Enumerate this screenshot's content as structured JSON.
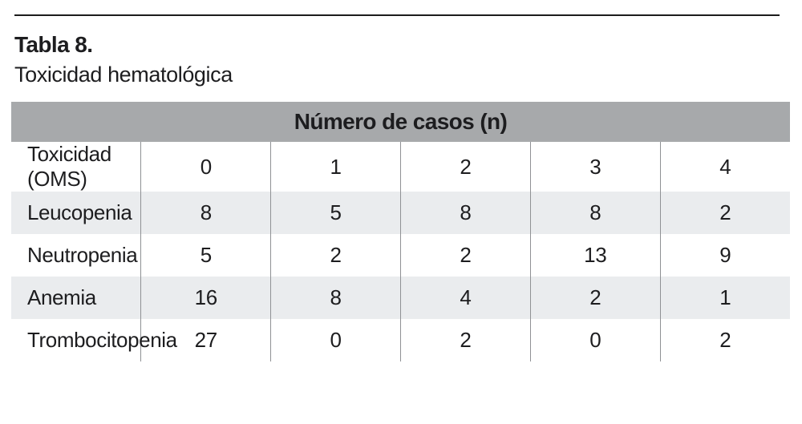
{
  "page": {
    "title": "Tabla 8.",
    "subtitle": "Toxicidad hematológica"
  },
  "table": {
    "header": "Número de casos (n)",
    "rows": [
      {
        "label": "Toxicidad (OMS)",
        "values": [
          "0",
          "1",
          "2",
          "3",
          "4"
        ]
      },
      {
        "label": "Leucopenia",
        "values": [
          "8",
          "5",
          "8",
          "8",
          "2"
        ]
      },
      {
        "label": "Neutropenia",
        "values": [
          "5",
          "2",
          "2",
          "13",
          "9"
        ]
      },
      {
        "label": "Anemia",
        "values": [
          "16",
          "8",
          "4",
          "2",
          "1"
        ]
      },
      {
        "label": "Trombocitopenia",
        "values": [
          "27",
          "0",
          "2",
          "0",
          "2"
        ]
      }
    ]
  },
  "colors": {
    "header_bg": "#a7a9ab",
    "row_alt_bg": "#eaecee",
    "divider": "#8f9194",
    "rule": "#1c1c1c",
    "text": "#1d1d1f"
  }
}
